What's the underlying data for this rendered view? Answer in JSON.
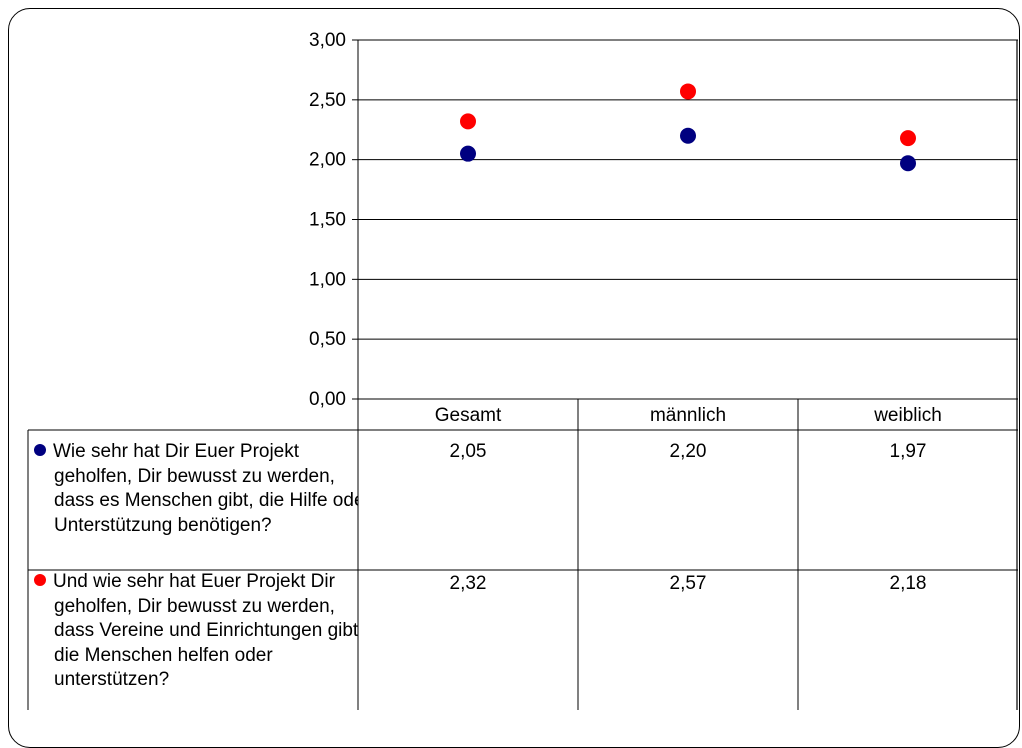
{
  "chart_data": {
    "type": "scatter",
    "categories": [
      "Gesamt",
      "männlich",
      "weiblich"
    ],
    "yticks": [
      "0,00",
      "0,50",
      "1,00",
      "1,50",
      "2,00",
      "2,50",
      "3,00"
    ],
    "ylim": [
      0,
      3
    ],
    "grid": true,
    "series": [
      {
        "name": "Wie sehr hat Dir Euer Projekt geholfen, Dir bewusst zu werden, dass es Menschen gibt, die Hilfe oder Unterstützung benötigen?",
        "color": "#000080",
        "values": [
          2.05,
          2.2,
          1.97
        ],
        "labels": [
          "2,05",
          "2,20",
          "1,97"
        ]
      },
      {
        "name": "Und wie sehr hat Euer Projekt Dir geholfen, Dir bewusst zu werden, dass Vereine und Einrichtungen gibt, die Menschen helfen oder unterstützen?",
        "color": "#ff0000",
        "values": [
          2.32,
          2.57,
          2.18
        ],
        "labels": [
          "2,32",
          "2,57",
          "2,18"
        ]
      }
    ]
  }
}
